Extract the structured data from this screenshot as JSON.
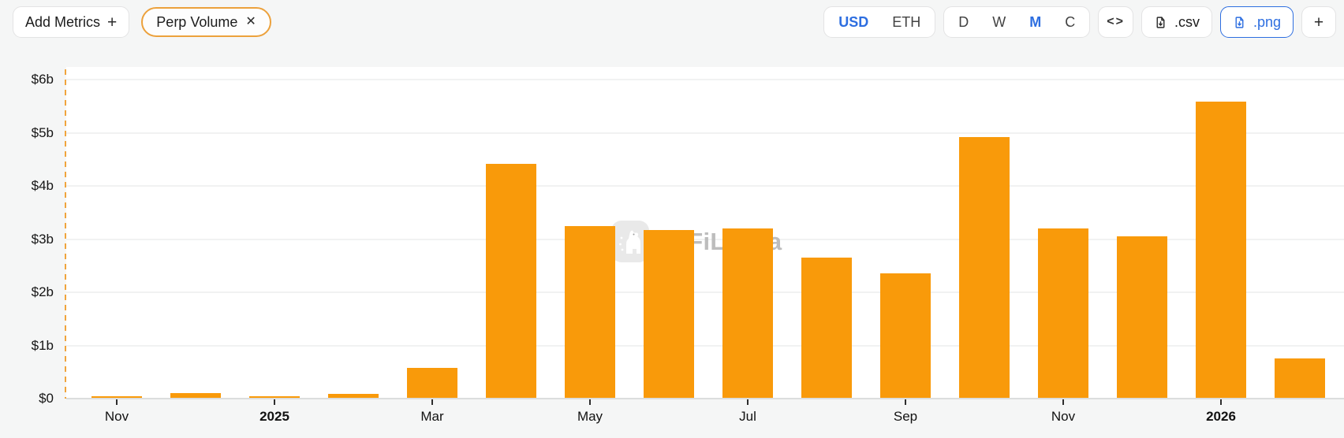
{
  "toolbar": {
    "add_metrics_label": "Add Metrics",
    "add_metrics_plus": "+",
    "metric_chip": {
      "label": "Perp Volume",
      "close": "✕",
      "border_color": "#ECA13C"
    },
    "currency_toggle": {
      "options": [
        "USD",
        "ETH"
      ],
      "selected": "USD"
    },
    "interval_toggle": {
      "options": [
        "D",
        "W",
        "M",
        "C"
      ],
      "selected": "M"
    },
    "code_button_label": "<>",
    "csv_button_label": ".csv",
    "png_button_label": ".png",
    "add_chart_label": "+",
    "accent_blue": "#2D6EE0"
  },
  "watermark": {
    "text": "DeFiLlama"
  },
  "chart_data": {
    "type": "bar",
    "title": "",
    "xlabel": "",
    "ylabel": "",
    "unit": "USD billions",
    "categories": [
      "Nov 2024",
      "Dec 2024",
      "Jan 2025",
      "Feb 2025",
      "Mar 2025",
      "Apr 2025",
      "May 2025",
      "Jun 2025",
      "Jul 2025",
      "Aug 2025",
      "Sep 2025",
      "Oct 2025",
      "Nov 2025",
      "Dec 2025",
      "Jan 2026",
      "Feb 2026"
    ],
    "values": [
      0.05,
      0.1,
      0.04,
      0.09,
      0.58,
      4.42,
      3.24,
      3.17,
      3.2,
      2.65,
      2.36,
      4.92,
      3.2,
      3.05,
      5.58,
      0.76
    ],
    "y_ticks": [
      "$0",
      "$1b",
      "$2b",
      "$3b",
      "$4b",
      "$5b",
      "$6b"
    ],
    "x_ticks": [
      {
        "index": 0,
        "label": "Nov",
        "bold": false
      },
      {
        "index": 2,
        "label": "2025",
        "bold": true
      },
      {
        "index": 4,
        "label": "Mar",
        "bold": false
      },
      {
        "index": 6,
        "label": "May",
        "bold": false
      },
      {
        "index": 8,
        "label": "Jul",
        "bold": false
      },
      {
        "index": 10,
        "label": "Sep",
        "bold": false
      },
      {
        "index": 12,
        "label": "Nov",
        "bold": false
      },
      {
        "index": 14,
        "label": "2026",
        "bold": true
      }
    ],
    "ylim": [
      0,
      6.24
    ],
    "grid": "horizontal",
    "legend": "none",
    "bar_color": "#F99A0A",
    "axis_dash_color": "#F0A43C"
  }
}
